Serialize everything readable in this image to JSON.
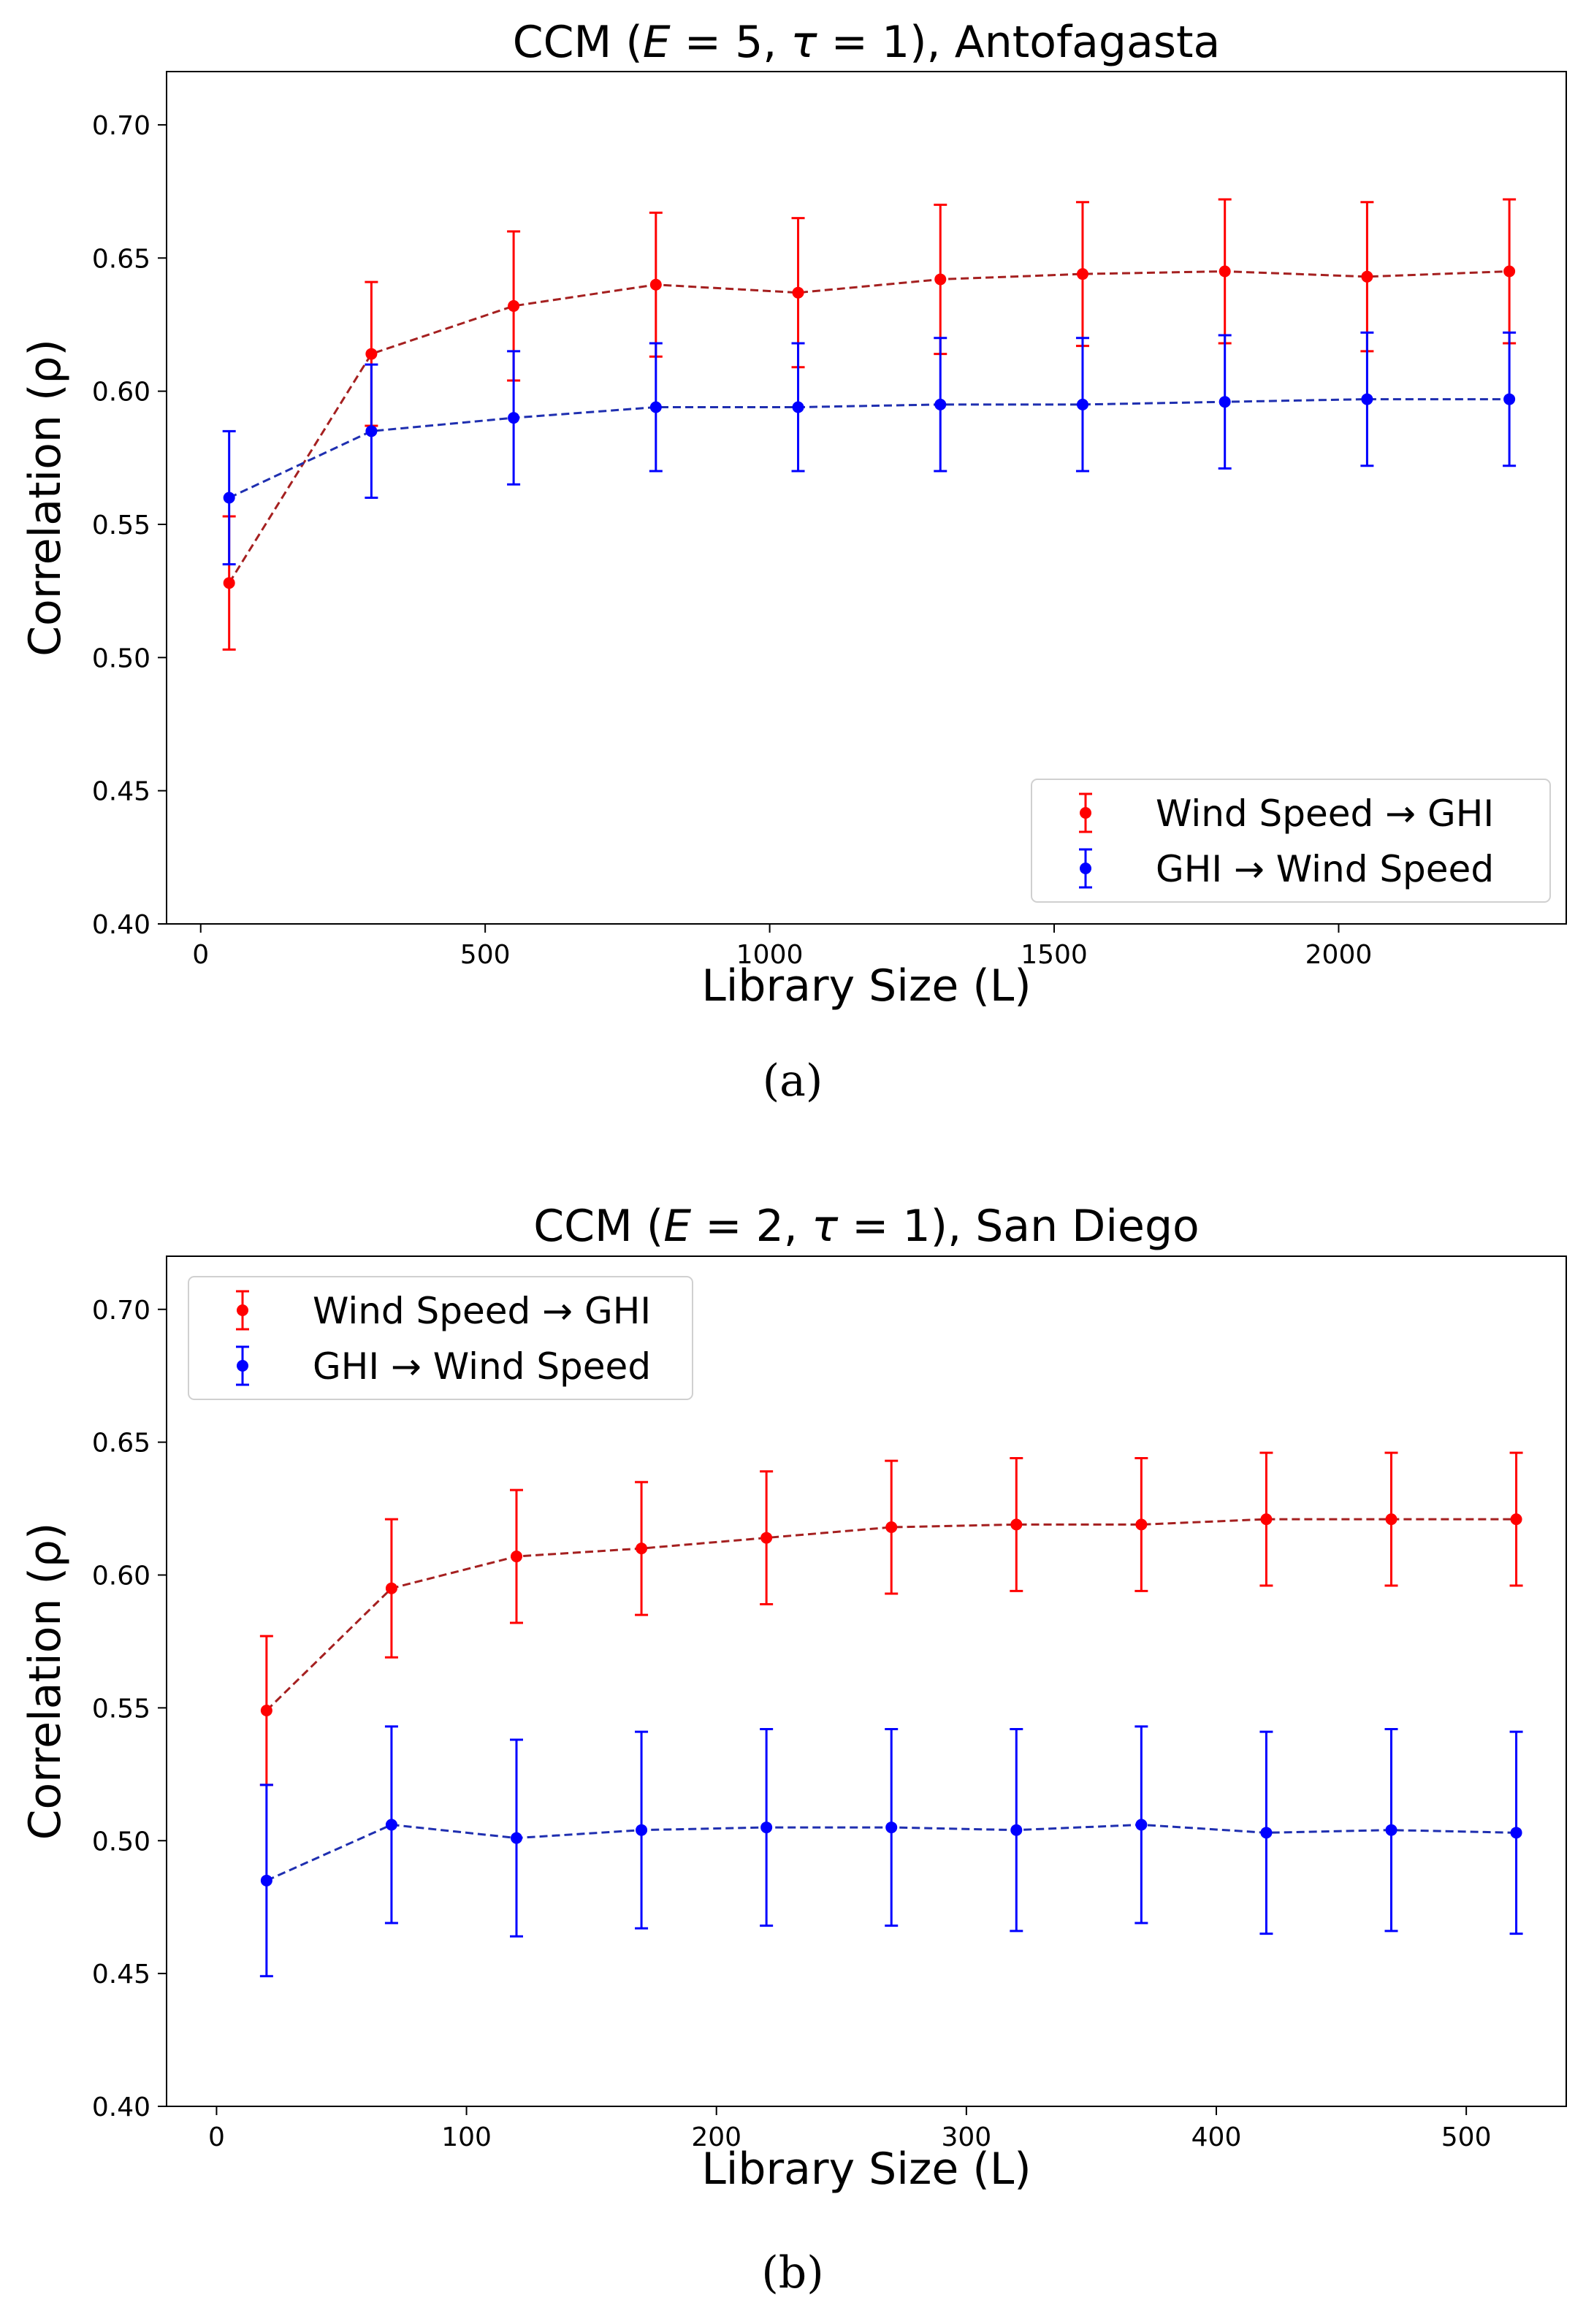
{
  "figure": {
    "captions": [
      "(a)",
      "(b)"
    ]
  },
  "chart_data": [
    {
      "type": "line",
      "title_prefix": "CCM (",
      "title_e": "E",
      "title_e_val": " = 5, ",
      "title_tau": "τ",
      "title_tau_val": " = 1), Antofagasta",
      "xlabel": "Library Size (L)",
      "ylabel": "Correlation (ρ)",
      "xlim": [
        -60,
        2400
      ],
      "ylim": [
        0.4,
        0.72
      ],
      "xticks": [
        0,
        500,
        1000,
        1500,
        2000
      ],
      "yticks": [
        0.4,
        0.45,
        0.5,
        0.55,
        0.6,
        0.65,
        0.7
      ],
      "ytick_labels": [
        "0.40",
        "0.45",
        "0.50",
        "0.55",
        "0.60",
        "0.65",
        "0.70"
      ],
      "grid": false,
      "legend_position": "lower-right",
      "x": [
        50,
        300,
        550,
        800,
        1050,
        1300,
        1550,
        1800,
        2050,
        2300
      ],
      "series": [
        {
          "name": "Wind Speed → GHI",
          "color": "#ff0000",
          "line_color": "#a52020",
          "values": [
            0.528,
            0.614,
            0.632,
            0.64,
            0.637,
            0.642,
            0.644,
            0.645,
            0.643,
            0.645
          ],
          "errors": [
            0.025,
            0.027,
            0.028,
            0.027,
            0.028,
            0.028,
            0.027,
            0.027,
            0.028,
            0.027
          ]
        },
        {
          "name": "GHI → Wind Speed",
          "color": "#0000ff",
          "line_color": "#1f2fb0",
          "values": [
            0.56,
            0.585,
            0.59,
            0.594,
            0.594,
            0.595,
            0.595,
            0.596,
            0.597,
            0.597
          ],
          "errors": [
            0.025,
            0.025,
            0.025,
            0.024,
            0.024,
            0.025,
            0.025,
            0.025,
            0.025,
            0.025
          ]
        }
      ]
    },
    {
      "type": "line",
      "title_prefix": "CCM (",
      "title_e": "E",
      "title_e_val": " = 2, ",
      "title_tau": "τ",
      "title_tau_val": " = 1), San Diego",
      "xlabel": "Library Size (L)",
      "ylabel": "Correlation (ρ)",
      "xlim": [
        -20,
        540
      ],
      "ylim": [
        0.4,
        0.72
      ],
      "xticks": [
        0,
        100,
        200,
        300,
        400,
        500
      ],
      "yticks": [
        0.4,
        0.45,
        0.5,
        0.55,
        0.6,
        0.65,
        0.7
      ],
      "ytick_labels": [
        "0.40",
        "0.45",
        "0.50",
        "0.55",
        "0.60",
        "0.65",
        "0.70"
      ],
      "grid": false,
      "legend_position": "upper-left",
      "x": [
        20,
        70,
        120,
        170,
        220,
        270,
        320,
        370,
        420,
        470,
        520
      ],
      "series": [
        {
          "name": "Wind Speed → GHI",
          "color": "#ff0000",
          "line_color": "#a52020",
          "values": [
            0.549,
            0.595,
            0.607,
            0.61,
            0.614,
            0.618,
            0.619,
            0.619,
            0.621,
            0.621,
            0.621
          ],
          "errors": [
            0.028,
            0.026,
            0.025,
            0.025,
            0.025,
            0.025,
            0.025,
            0.025,
            0.025,
            0.025,
            0.025
          ]
        },
        {
          "name": "GHI → Wind Speed",
          "color": "#0000ff",
          "line_color": "#1f2fb0",
          "values": [
            0.485,
            0.506,
            0.501,
            0.504,
            0.505,
            0.505,
            0.504,
            0.506,
            0.503,
            0.504,
            0.503
          ],
          "errors": [
            0.036,
            0.037,
            0.037,
            0.037,
            0.037,
            0.037,
            0.038,
            0.037,
            0.038,
            0.038,
            0.038
          ]
        }
      ]
    }
  ]
}
